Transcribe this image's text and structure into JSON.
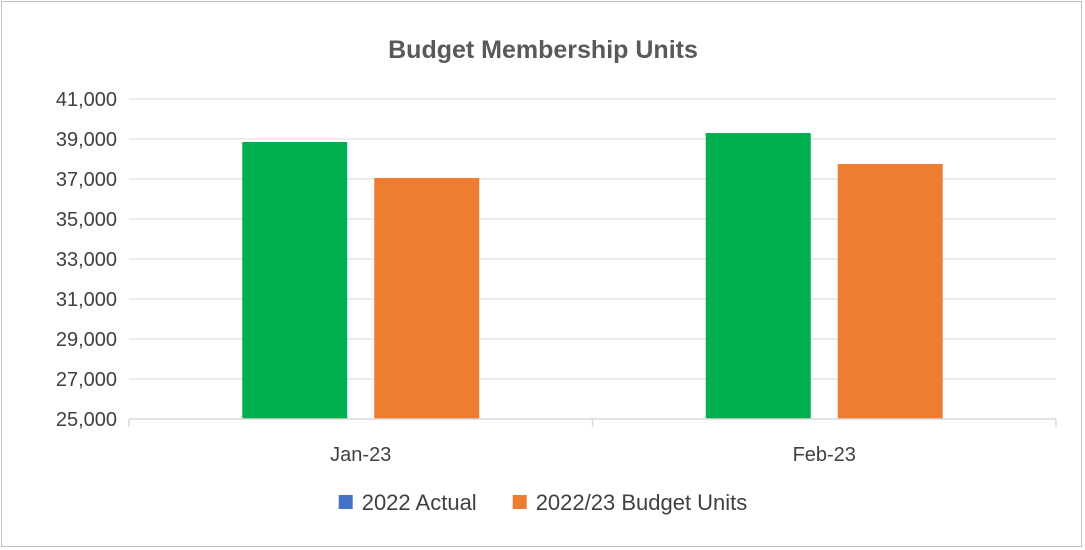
{
  "chart_data": {
    "type": "bar",
    "title": "Budget Membership Units",
    "categories": [
      "Jan-23",
      "Feb-23"
    ],
    "ylim": [
      25000,
      41000
    ],
    "yticks": [
      "41,000",
      "39,000",
      "37,000",
      "35,000",
      "33,000",
      "31,000",
      "29,000",
      "27,000",
      "25,000"
    ],
    "ytick_values": [
      41000,
      39000,
      37000,
      35000,
      33000,
      31000,
      29000,
      27000,
      25000
    ],
    "grid": true,
    "legend_position": "bottom",
    "series": [
      {
        "name": "2022 Actual",
        "values": [
          38850,
          39300
        ],
        "bar_color": "#00b050",
        "legend_color": "#4472c4"
      },
      {
        "name": "2022/23 Budget Units",
        "values": [
          37050,
          37750
        ],
        "bar_color": "#ed7d31",
        "legend_color": "#ed7d31"
      }
    ]
  }
}
